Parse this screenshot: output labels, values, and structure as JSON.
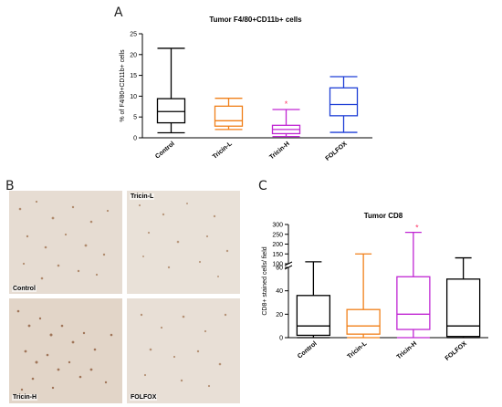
{
  "panels": {
    "a": {
      "letter": "A"
    },
    "b": {
      "letter": "B",
      "labels": [
        "Control",
        "Tricin-L",
        "Tricin-H",
        "FOLFOX"
      ]
    },
    "c": {
      "letter": "C"
    }
  },
  "chart_data": [
    {
      "type": "box",
      "title": "Tumor F4/80+CD11b+ cells",
      "xlabel": "",
      "ylabel": "% of F4/80+CD11b+ cells",
      "ylim": [
        0,
        25
      ],
      "yticks": [
        0,
        5,
        10,
        15,
        20,
        25
      ],
      "categories": [
        "Control",
        "Tricin-L",
        "Tricin-H",
        "FOLFOX"
      ],
      "colors": [
        "#000000",
        "#f07f18",
        "#c026d3",
        "#1e3fd6"
      ],
      "boxes": [
        {
          "min": 1.2,
          "q1": 3.6,
          "median": 6.3,
          "q3": 9.4,
          "max": 21.5,
          "sig": ""
        },
        {
          "min": 2.0,
          "q1": 2.8,
          "median": 4.1,
          "q3": 7.6,
          "max": 9.5,
          "sig": ""
        },
        {
          "min": 0.3,
          "q1": 1.0,
          "median": 2.0,
          "q3": 3.0,
          "max": 6.8,
          "sig": "*"
        },
        {
          "min": 1.3,
          "q1": 5.3,
          "median": 8.0,
          "q3": 12.0,
          "max": 14.7,
          "sig": ""
        }
      ],
      "sig_color": "#ff3b6b",
      "grid": false,
      "legend": "none"
    },
    {
      "type": "box",
      "title": "Tumor CD8",
      "xlabel": "",
      "ylabel": "CD8+ stained cells/ field",
      "axis_break": true,
      "ylim_lower": [
        0,
        60
      ],
      "yticks_lower": [
        0,
        20,
        40,
        60
      ],
      "ylim_upper": [
        100,
        300
      ],
      "yticks_upper": [
        100,
        150,
        200,
        250,
        300
      ],
      "categories": [
        "Control",
        "Tricin-L",
        "Tricin-H",
        "FOLFOX"
      ],
      "colors": [
        "#000000",
        "#f07f18",
        "#c026d3",
        "#000000"
      ],
      "boxes": [
        {
          "min": 0,
          "q1": 2,
          "median": 10,
          "q3": 36,
          "max": 110,
          "sig": ""
        },
        {
          "min": 0,
          "q1": 3,
          "median": 10,
          "q3": 24,
          "max": 150,
          "sig": ""
        },
        {
          "min": 0,
          "q1": 7,
          "median": 20,
          "q3": 52,
          "max": 260,
          "sig": "*"
        },
        {
          "min": 0,
          "q1": 1,
          "median": 10,
          "q3": 50,
          "max": 130,
          "sig": ""
        }
      ],
      "sig_color": "#ff3b6b",
      "grid": false,
      "legend": "none"
    }
  ]
}
